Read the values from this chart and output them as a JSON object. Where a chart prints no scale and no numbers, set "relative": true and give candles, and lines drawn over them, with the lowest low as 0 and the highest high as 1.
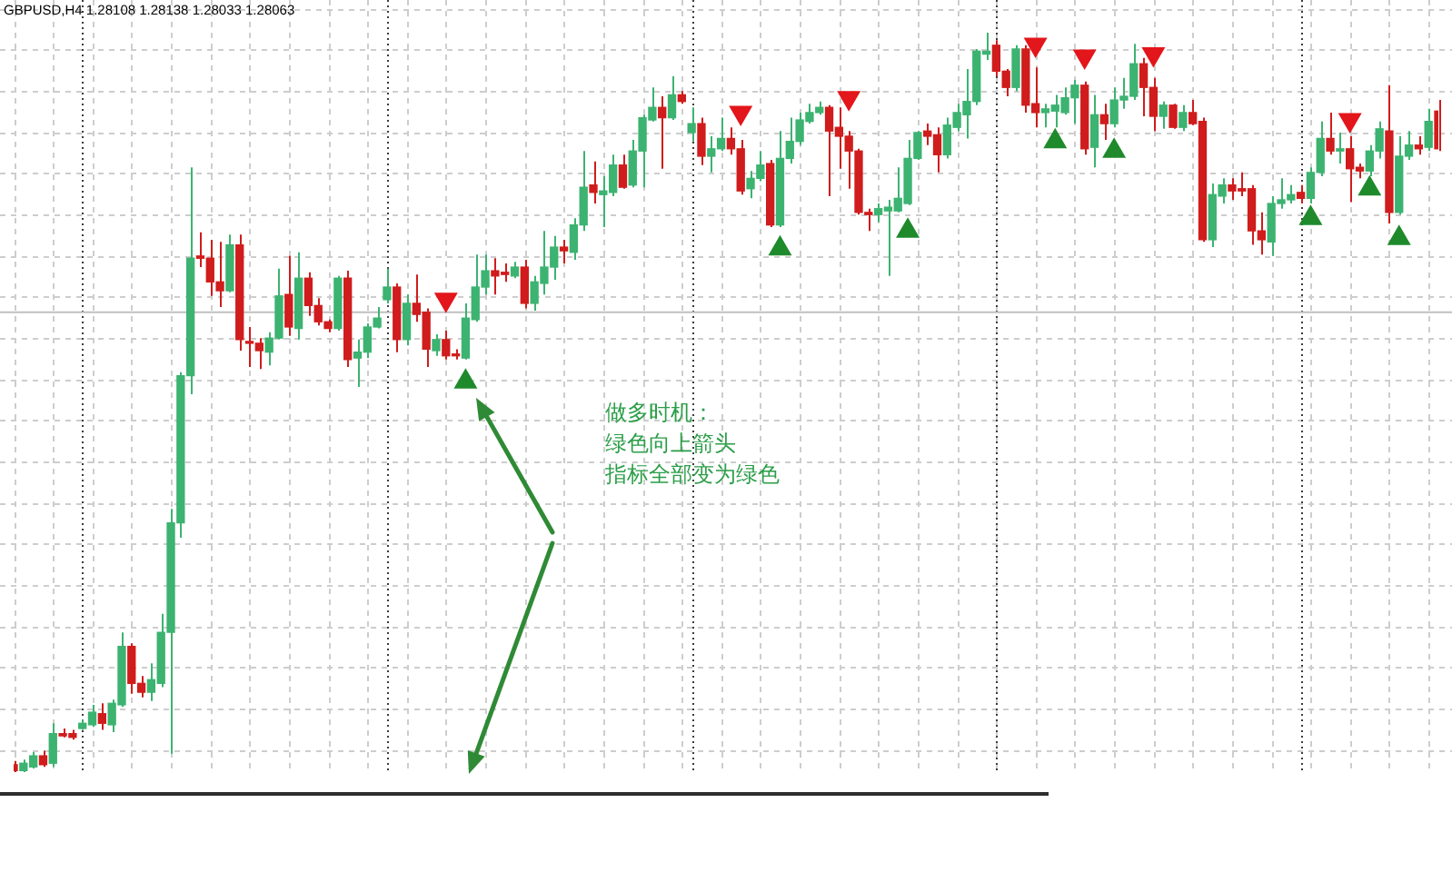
{
  "chart_data": {
    "type": "candlestick",
    "title": "GBPUSD,H4 1.28108 1.28138 1.28033 1.28063",
    "relative": true,
    "grid": true,
    "tick_labels": false,
    "marker": "triangle",
    "categories": [
      null,
      null,
      null,
      null,
      null,
      null,
      null,
      null,
      null,
      null,
      null,
      null,
      null,
      null,
      null,
      null,
      null,
      null,
      null,
      null,
      null,
      null,
      null,
      null,
      null,
      null,
      null,
      null,
      null,
      null,
      null,
      null,
      null,
      null,
      null,
      null,
      null,
      null,
      null,
      null,
      null,
      null,
      null,
      null,
      null,
      null,
      null,
      null,
      null,
      null,
      null,
      null,
      null,
      null,
      null,
      null,
      null,
      null,
      null,
      null,
      null,
      null,
      null,
      null,
      null,
      null,
      null,
      null,
      null,
      null,
      null,
      null,
      null,
      null,
      null,
      null,
      null,
      null,
      null,
      null,
      null,
      null,
      null,
      null,
      null,
      null,
      null,
      null,
      null,
      null,
      null,
      null,
      null,
      null,
      null,
      null,
      null,
      null,
      null,
      null,
      null,
      null,
      null,
      null,
      null,
      null,
      null,
      null,
      null,
      null,
      null,
      null,
      null,
      null,
      null,
      null,
      null,
      null,
      null,
      null,
      null,
      null,
      null,
      null,
      null,
      null,
      null,
      null,
      null,
      null,
      null,
      null,
      null,
      null,
      null,
      null,
      null,
      null,
      null,
      null,
      null,
      null,
      null,
      null,
      null,
      null
    ],
    "ohlc": [
      [
        0.01,
        0.015,
        0,
        0.002
      ],
      [
        0.002,
        0.017,
        0,
        0.012
      ],
      [
        0.007,
        0.027,
        0.005,
        0.022
      ],
      [
        0.022,
        0.029,
        0.007,
        0.01
      ],
      [
        0.012,
        0.066,
        0.007,
        0.052
      ],
      [
        0.052,
        0.059,
        0.047,
        0.049
      ],
      [
        0.052,
        0.057,
        0.044,
        0.047
      ],
      [
        0.059,
        0.071,
        0.057,
        0.066
      ],
      [
        0.064,
        0.091,
        0.061,
        0.081
      ],
      [
        0.079,
        0.093,
        0.057,
        0.066
      ],
      [
        0.064,
        0.098,
        0.054,
        0.093
      ],
      [
        0.091,
        0.189,
        0.088,
        0.17
      ],
      [
        0.17,
        0.174,
        0.106,
        0.12
      ],
      [
        0.12,
        0.13,
        0.101,
        0.108
      ],
      [
        0.108,
        0.147,
        0.096,
        0.125
      ],
      [
        0.12,
        0.214,
        0.115,
        0.189
      ],
      [
        0.189,
        0.356,
        0.025,
        0.337
      ],
      [
        0.337,
        0.541,
        0.317,
        0.536
      ],
      [
        0.536,
        0.818,
        0.511,
        0.695
      ],
      [
        0.698,
        0.73,
        0.683,
        0.695
      ],
      [
        0.695,
        0.72,
        0.644,
        0.663
      ],
      [
        0.663,
        0.717,
        0.629,
        0.651
      ],
      [
        0.651,
        0.727,
        0.649,
        0.713
      ],
      [
        0.713,
        0.727,
        0.57,
        0.585
      ],
      [
        0.582,
        0.602,
        0.548,
        0.58
      ],
      [
        0.58,
        0.587,
        0.545,
        0.57
      ],
      [
        0.568,
        0.595,
        0.55,
        0.587
      ],
      [
        0.587,
        0.681,
        0.585,
        0.644
      ],
      [
        0.646,
        0.698,
        0.59,
        0.602
      ],
      [
        0.6,
        0.703,
        0.585,
        0.668
      ],
      [
        0.668,
        0.676,
        0.617,
        0.631
      ],
      [
        0.631,
        0.641,
        0.604,
        0.609
      ],
      [
        0.609,
        0.612,
        0.595,
        0.6
      ],
      [
        0.6,
        0.671,
        0.597,
        0.668
      ],
      [
        0.668,
        0.678,
        0.548,
        0.558
      ],
      [
        0.56,
        0.585,
        0.521,
        0.568
      ],
      [
        0.568,
        0.607,
        0.56,
        0.602
      ],
      [
        0.602,
        0.629,
        0.6,
        0.614
      ],
      [
        0.639,
        0.681,
        0.634,
        0.656
      ],
      [
        0.656,
        0.661,
        0.568,
        0.585
      ],
      [
        0.585,
        0.646,
        0.577,
        0.634
      ],
      [
        0.634,
        0.673,
        0.609,
        0.619
      ],
      [
        0.622,
        0.627,
        0.548,
        0.572
      ],
      [
        0.57,
        0.592,
        0.563,
        0.585
      ],
      [
        0.585,
        0.597,
        0.558,
        0.563
      ],
      [
        0.565,
        0.572,
        0.558,
        0.563
      ],
      [
        0.56,
        0.634,
        0.558,
        0.614
      ],
      [
        0.612,
        0.7,
        0.609,
        0.656
      ],
      [
        0.656,
        0.7,
        0.646,
        0.678
      ],
      [
        0.678,
        0.695,
        0.646,
        0.671
      ],
      [
        0.676,
        0.688,
        0.663,
        0.673
      ],
      [
        0.671,
        0.69,
        0.668,
        0.683
      ],
      [
        0.683,
        0.693,
        0.627,
        0.634
      ],
      [
        0.634,
        0.671,
        0.624,
        0.663
      ],
      [
        0.661,
        0.732,
        0.646,
        0.683
      ],
      [
        0.683,
        0.725,
        0.666,
        0.71
      ],
      [
        0.71,
        0.72,
        0.688,
        0.705
      ],
      [
        0.703,
        0.749,
        0.693,
        0.74
      ],
      [
        0.74,
        0.84,
        0.732,
        0.791
      ],
      [
        0.794,
        0.826,
        0.769,
        0.784
      ],
      [
        0.781,
        0.806,
        0.737,
        0.786
      ],
      [
        0.784,
        0.835,
        0.779,
        0.821
      ],
      [
        0.821,
        0.835,
        0.789,
        0.791
      ],
      [
        0.794,
        0.855,
        0.791,
        0.84
      ],
      [
        0.84,
        0.889,
        0.791,
        0.885
      ],
      [
        0.882,
        0.926,
        0.88,
        0.899
      ],
      [
        0.899,
        0.914,
        0.816,
        0.885
      ],
      [
        0.885,
        0.941,
        0.882,
        0.916
      ],
      [
        0.916,
        0.921,
        0.904,
        0.907
      ],
      [
        0.865,
        0.899,
        0.853,
        0.877
      ],
      [
        0.877,
        0.885,
        0.821,
        0.833
      ],
      [
        0.833,
        0.86,
        0.811,
        0.843
      ],
      [
        0.843,
        0.885,
        0.84,
        0.857
      ],
      [
        0.857,
        0.872,
        0.835,
        0.843
      ],
      [
        0.843,
        0.855,
        0.781,
        0.786
      ],
      [
        0.789,
        0.813,
        0.776,
        0.803
      ],
      [
        0.803,
        0.84,
        0.799,
        0.821
      ],
      [
        0.823,
        0.828,
        0.737,
        0.74
      ],
      [
        0.74,
        0.867,
        0.737,
        0.83
      ],
      [
        0.83,
        0.885,
        0.823,
        0.853
      ],
      [
        0.853,
        0.892,
        0.848,
        0.882
      ],
      [
        0.88,
        0.904,
        0.877,
        0.892
      ],
      [
        0.892,
        0.907,
        0.889,
        0.899
      ],
      [
        0.899,
        0.902,
        0.779,
        0.867
      ],
      [
        0.872,
        0.899,
        0.816,
        0.86
      ],
      [
        0.86,
        0.867,
        0.789,
        0.84
      ],
      [
        0.84,
        0.843,
        0.754,
        0.757
      ],
      [
        0.757,
        0.762,
        0.732,
        0.754
      ],
      [
        0.754,
        0.769,
        0.744,
        0.762
      ],
      [
        0.759,
        0.774,
        0.671,
        0.764
      ],
      [
        0.759,
        0.818,
        0.757,
        0.776
      ],
      [
        0.769,
        0.855,
        0.767,
        0.83
      ],
      [
        0.83,
        0.867,
        0.828,
        0.865
      ],
      [
        0.867,
        0.877,
        0.848,
        0.86
      ],
      [
        0.862,
        0.872,
        0.811,
        0.835
      ],
      [
        0.835,
        0.885,
        0.83,
        0.875
      ],
      [
        0.872,
        0.904,
        0.867,
        0.892
      ],
      [
        0.889,
        0.951,
        0.857,
        0.907
      ],
      [
        0.907,
        0.978,
        0.902,
        0.975
      ],
      [
        0.971,
        1,
        0.963,
        0.975
      ],
      [
        0.983,
        0.99,
        0.941,
        0.948
      ],
      [
        0.948,
        0.951,
        0.914,
        0.926
      ],
      [
        0.926,
        0.983,
        0.921,
        0.978
      ],
      [
        0.978,
        0.983,
        0.892,
        0.902
      ],
      [
        0.904,
        0.953,
        0.872,
        0.892
      ],
      [
        0.892,
        0.904,
        0.872,
        0.897
      ],
      [
        0.894,
        0.916,
        0.872,
        0.902
      ],
      [
        0.892,
        0.926,
        0.889,
        0.912
      ],
      [
        0.912,
        0.936,
        0.877,
        0.929
      ],
      [
        0.929,
        0.934,
        0.835,
        0.843
      ],
      [
        0.845,
        0.916,
        0.818,
        0.889
      ],
      [
        0.889,
        0.904,
        0.855,
        0.877
      ],
      [
        0.877,
        0.926,
        0.872,
        0.909
      ],
      [
        0.909,
        0.939,
        0.897,
        0.914
      ],
      [
        0.914,
        0.985,
        0.909,
        0.958
      ],
      [
        0.958,
        0.966,
        0.887,
        0.926
      ],
      [
        0.926,
        0.939,
        0.867,
        0.887
      ],
      [
        0.887,
        0.907,
        0.87,
        0.902
      ],
      [
        0.902,
        0.904,
        0.87,
        0.872
      ],
      [
        0.872,
        0.902,
        0.867,
        0.892
      ],
      [
        0.892,
        0.909,
        0.875,
        0.877
      ],
      [
        0.88,
        0.885,
        0.717,
        0.72
      ],
      [
        0.72,
        0.796,
        0.71,
        0.781
      ],
      [
        0.779,
        0.803,
        0.769,
        0.794
      ],
      [
        0.794,
        0.803,
        0.774,
        0.786
      ],
      [
        0.789,
        0.811,
        0.779,
        0.786
      ],
      [
        0.789,
        0.794,
        0.713,
        0.732
      ],
      [
        0.732,
        0.757,
        0.7,
        0.72
      ],
      [
        0.717,
        0.779,
        0.698,
        0.769
      ],
      [
        0.769,
        0.803,
        0.762,
        0.774
      ],
      [
        0.774,
        0.794,
        0.769,
        0.781
      ],
      [
        0.784,
        0.794,
        0.769,
        0.776
      ],
      [
        0.776,
        0.818,
        0.769,
        0.811
      ],
      [
        0.811,
        0.88,
        0.806,
        0.857
      ],
      [
        0.857,
        0.892,
        0.835,
        0.84
      ],
      [
        0.84,
        0.865,
        0.823,
        0.843
      ],
      [
        0.843,
        0.86,
        0.771,
        0.816
      ],
      [
        0.818,
        0.823,
        0.803,
        0.813
      ],
      [
        0.813,
        0.848,
        0.806,
        0.84
      ],
      [
        0.84,
        0.88,
        0.83,
        0.87
      ],
      [
        0.867,
        0.929,
        0.742,
        0.757
      ],
      [
        0.757,
        0.86,
        0.754,
        0.833
      ],
      [
        0.833,
        0.867,
        0.828,
        0.848
      ],
      [
        0.848,
        0.86,
        0.835,
        0.843
      ],
      [
        0.845,
        0.897,
        0.84,
        0.88
      ],
      [
        0.894,
        0.909,
        0.84,
        0.843
      ]
    ],
    "colors": [
      "#d01c1c",
      "#3cb371",
      "#3cb371",
      "#d01c1c",
      "#3cb371",
      "#d01c1c",
      "#d01c1c",
      "#3cb371",
      "#3cb371",
      "#d01c1c",
      "#3cb371",
      "#3cb371",
      "#d01c1c",
      "#d01c1c",
      "#3cb371",
      "#3cb371",
      "#3cb371",
      "#3cb371",
      "#3cb371",
      "#d01c1c",
      "#d01c1c",
      "#d01c1c",
      "#3cb371",
      "#d01c1c",
      "#d01c1c",
      "#d01c1c",
      "#3cb371",
      "#3cb371",
      "#d01c1c",
      "#3cb371",
      "#d01c1c",
      "#d01c1c",
      "#d01c1c",
      "#3cb371",
      "#d01c1c",
      "#3cb371",
      "#3cb371",
      "#3cb371",
      "#3cb371",
      "#d01c1c",
      "#3cb371",
      "#d01c1c",
      "#d01c1c",
      "#3cb371",
      "#d01c1c",
      "#d01c1c",
      "#3cb371",
      "#3cb371",
      "#3cb371",
      "#d01c1c",
      "#d01c1c",
      "#3cb371",
      "#d01c1c",
      "#3cb371",
      "#3cb371",
      "#3cb371",
      "#d01c1c",
      "#3cb371",
      "#3cb371",
      "#d01c1c",
      "#3cb371",
      "#3cb371",
      "#d01c1c",
      "#3cb371",
      "#3cb371",
      "#3cb371",
      "#d01c1c",
      "#3cb371",
      "#d01c1c",
      "#3cb371",
      "#d01c1c",
      "#3cb371",
      "#3cb371",
      "#d01c1c",
      "#d01c1c",
      "#3cb371",
      "#3cb371",
      "#d01c1c",
      "#3cb371",
      "#3cb371",
      "#3cb371",
      "#3cb371",
      "#3cb371",
      "#d01c1c",
      "#d01c1c",
      "#d01c1c",
      "#d01c1c",
      "#d01c1c",
      "#3cb371",
      "#3cb371",
      "#3cb371",
      "#3cb371",
      "#3cb371",
      "#d01c1c",
      "#d01c1c",
      "#3cb371",
      "#3cb371",
      "#3cb371",
      "#3cb371",
      "#3cb371",
      "#d01c1c",
      "#d01c1c",
      "#3cb371",
      "#d01c1c",
      "#d01c1c",
      "#3cb371",
      "#3cb371",
      "#3cb371",
      "#3cb371",
      "#d01c1c",
      "#3cb371",
      "#d01c1c",
      "#3cb371",
      "#3cb371",
      "#3cb371",
      "#d01c1c",
      "#d01c1c",
      "#3cb371",
      "#d01c1c",
      "#3cb371",
      "#d01c1c",
      "#d01c1c",
      "#3cb371",
      "#3cb371",
      "#d01c1c",
      "#d01c1c",
      "#d01c1c",
      "#d01c1c",
      "#3cb371",
      "#3cb371",
      "#3cb371",
      "#d01c1c",
      "#3cb371",
      "#3cb371",
      "#d01c1c",
      "#3cb371",
      "#d01c1c",
      "#d01c1c",
      "#3cb371",
      "#3cb371",
      "#d01c1c",
      "#3cb371",
      "#3cb371",
      "#d01c1c",
      "#3cb371",
      "#d01c1c"
    ],
    "series": [
      {
        "type": "scatter",
        "color": "#e3161b",
        "values": [
          null,
          null,
          null,
          null,
          null,
          null,
          null,
          null,
          null,
          null,
          null,
          null,
          null,
          null,
          null,
          null,
          null,
          null,
          null,
          null,
          null,
          null,
          null,
          null,
          null,
          null,
          null,
          null,
          null,
          null,
          null,
          null,
          null,
          null,
          null,
          null,
          null,
          null,
          null,
          null,
          null,
          null,
          null,
          null,
          0.639,
          null,
          null,
          null,
          null,
          null,
          null,
          null,
          null,
          null,
          null,
          null,
          null,
          null,
          null,
          null,
          null,
          null,
          null,
          null,
          null,
          null,
          null,
          null,
          null,
          null,
          null,
          null,
          null,
          null,
          0.892,
          null,
          null,
          null,
          null,
          null,
          null,
          null,
          null,
          null,
          null,
          0.912,
          null,
          null,
          null,
          null,
          null,
          null,
          null,
          null,
          null,
          null,
          null,
          null,
          null,
          null,
          null,
          null,
          null,
          null,
          0.984,
          null,
          null,
          null,
          null,
          0.968,
          null,
          null,
          null,
          null,
          null,
          null,
          0.971,
          null,
          null,
          null,
          null,
          null,
          null,
          null,
          null,
          null,
          null,
          null,
          null,
          null,
          null,
          null,
          null,
          null,
          null,
          null,
          0.882,
          null,
          null,
          null,
          null,
          null,
          null,
          null,
          null,
          null
        ]
      },
      {
        "type": "scatter",
        "color": "#1f8a2c",
        "values": [
          null,
          null,
          null,
          null,
          null,
          null,
          null,
          null,
          null,
          null,
          null,
          null,
          null,
          null,
          null,
          null,
          null,
          null,
          null,
          null,
          null,
          null,
          null,
          null,
          null,
          null,
          null,
          null,
          null,
          null,
          null,
          null,
          null,
          null,
          null,
          null,
          null,
          null,
          null,
          null,
          null,
          null,
          null,
          null,
          null,
          null,
          0.528,
          null,
          null,
          null,
          null,
          null,
          null,
          null,
          null,
          null,
          null,
          null,
          null,
          null,
          null,
          null,
          null,
          null,
          null,
          null,
          null,
          null,
          null,
          null,
          null,
          null,
          null,
          null,
          null,
          null,
          null,
          null,
          0.708,
          null,
          null,
          null,
          null,
          null,
          null,
          null,
          null,
          null,
          null,
          null,
          null,
          0.732,
          null,
          null,
          null,
          null,
          null,
          null,
          null,
          null,
          null,
          null,
          null,
          null,
          null,
          null,
          0.853,
          null,
          null,
          null,
          null,
          null,
          0.84,
          null,
          null,
          null,
          null,
          null,
          null,
          null,
          null,
          null,
          null,
          null,
          null,
          null,
          null,
          null,
          null,
          null,
          null,
          null,
          0.749,
          null,
          null,
          null,
          null,
          null,
          0.789,
          null,
          null,
          0.722,
          null,
          null,
          null,
          null
        ]
      }
    ],
    "ref_lines": [
      {
        "axis": "y",
        "value": 0.622,
        "color": "#c0c0c0"
      }
    ],
    "annotations": [
      "做多时机：",
      "绿色向上箭头",
      "指标全部变为绿色"
    ]
  }
}
